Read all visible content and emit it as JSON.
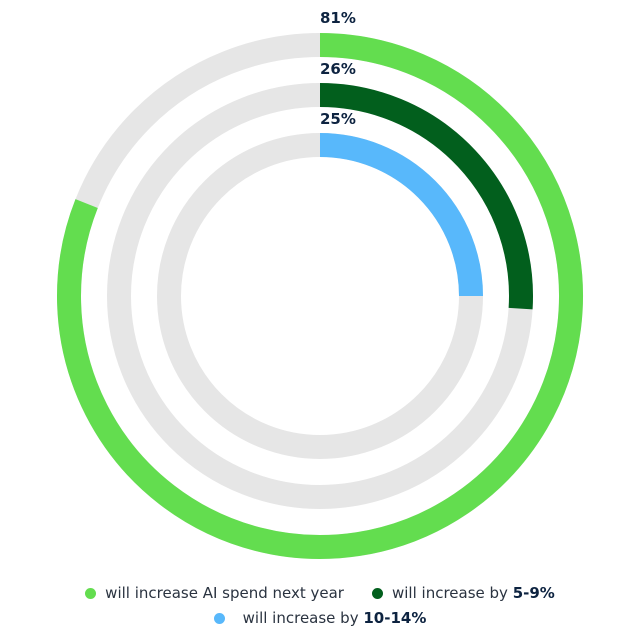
{
  "chart_data": {
    "type": "radial_bar",
    "title": "",
    "series": [
      {
        "name": "will increase AI spend next year",
        "value": 81,
        "label": "81%",
        "color": "#63dd4f"
      },
      {
        "name": "will increase by 5-9%",
        "value": 26,
        "label": "26%",
        "color": "#025f1d"
      },
      {
        "name": "will increase by 10-14%",
        "value": 25,
        "label": "25%",
        "color": "#58b8fb"
      }
    ],
    "track_color": "#e6e6e6",
    "max": 100,
    "legend_position": "bottom"
  },
  "labels": {
    "outer": "81%",
    "middle": "26%",
    "inner": "25%"
  },
  "legend": [
    {
      "text": "will increase AI spend next year",
      "bold": "",
      "color": "#63dd4f"
    },
    {
      "text": "will increase by ",
      "bold": "5-9%",
      "color": "#025f1d"
    },
    {
      "text": "will increase by ",
      "bold": "10-14%",
      "color": "#58b8fb"
    }
  ]
}
